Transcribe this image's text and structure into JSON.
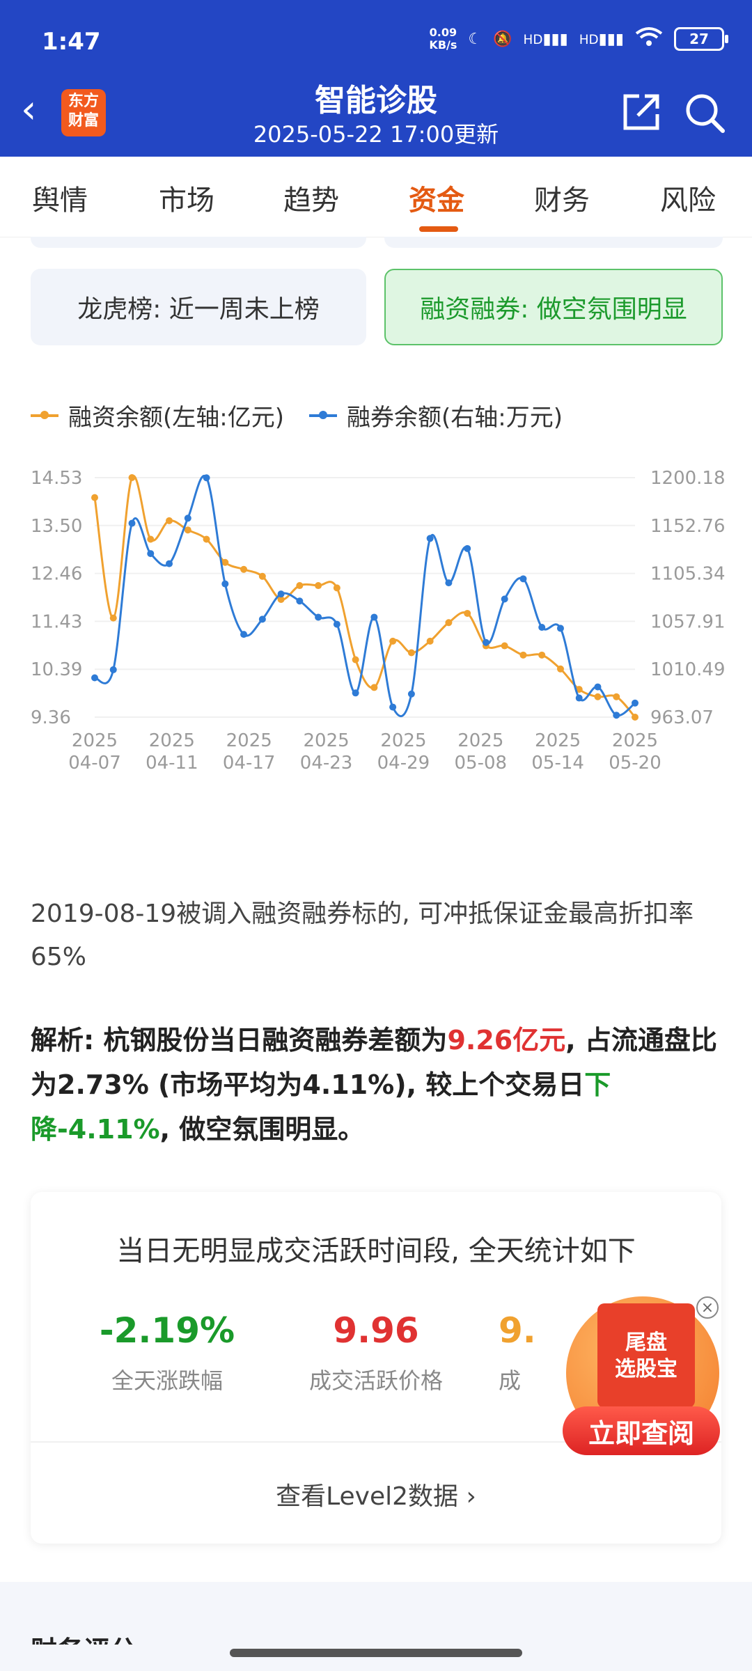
{
  "status_bar": {
    "time": "1:47",
    "net_speed_value": "0.09",
    "net_speed_unit": "KB/s",
    "signal1": "HD",
    "signal2": "HD",
    "battery": "27"
  },
  "header": {
    "title": "智能诊股",
    "subtitle": "2025-05-22 17:00更新",
    "logo_line1": "东方",
    "logo_line2": "财富"
  },
  "tabs": [
    {
      "label": "舆情"
    },
    {
      "label": "市场"
    },
    {
      "label": "趋势"
    },
    {
      "label": "资金",
      "active": true
    },
    {
      "label": "财务"
    },
    {
      "label": "风险"
    }
  ],
  "cards": {
    "lhb": "龙虎榜: 近一周未上榜",
    "rzrq": "融资融券: 做空氛围明显"
  },
  "legend": [
    {
      "label": "融资余额(左轴:亿元)",
      "color": "#f0a12f"
    },
    {
      "label": "融券余额(右轴:万元)",
      "color": "#2e7bd6"
    }
  ],
  "chart_data": {
    "type": "line",
    "x_ticks": [
      {
        "year": "2025",
        "date": "04-07"
      },
      {
        "year": "2025",
        "date": "04-11"
      },
      {
        "year": "2025",
        "date": "04-17"
      },
      {
        "year": "2025",
        "date": "04-23"
      },
      {
        "year": "2025",
        "date": "04-29"
      },
      {
        "year": "2025",
        "date": "05-08"
      },
      {
        "year": "2025",
        "date": "05-14"
      },
      {
        "year": "2025",
        "date": "05-20"
      }
    ],
    "left_axis": {
      "ticks": [
        "14.53",
        "13.50",
        "12.46",
        "11.43",
        "10.39",
        "9.36"
      ],
      "range": [
        9.36,
        14.53
      ]
    },
    "right_axis": {
      "ticks": [
        "1200.18",
        "1152.76",
        "1105.34",
        "1057.91",
        "1010.49",
        "963.07"
      ],
      "range": [
        963.07,
        1200.18
      ]
    },
    "series": [
      {
        "name": "融资余额(左轴:亿元)",
        "axis": "left",
        "color": "#f0a12f",
        "values": [
          14.1,
          11.5,
          14.53,
          13.2,
          13.6,
          13.4,
          13.2,
          12.7,
          12.55,
          12.4,
          11.9,
          12.2,
          12.2,
          12.15,
          10.6,
          10.0,
          11.0,
          10.75,
          11.0,
          11.4,
          11.6,
          10.9,
          10.9,
          10.7,
          10.7,
          10.4,
          9.96,
          9.8,
          9.8,
          9.36
        ]
      },
      {
        "name": "融券余额(右轴:万元)",
        "axis": "right",
        "color": "#2e7bd6",
        "values": [
          1002,
          1010,
          1155,
          1125,
          1115,
          1160,
          1200,
          1095,
          1045,
          1060,
          1085,
          1078,
          1062,
          1055,
          987,
          1062,
          973,
          986,
          1140,
          1096,
          1130,
          1037,
          1080,
          1100,
          1052,
          1051,
          982,
          993,
          965,
          977
        ]
      }
    ]
  },
  "note": "2019-08-19被调入融资融券标的, 可冲抵保证金最高折扣率65%",
  "analysis": {
    "prefix": "解析: 杭钢股份当日融资融券差额为",
    "amount": "9.26亿元",
    "middle": ", 占流通盘比为2.73% (市场平均为4.11%), 较上个交易日",
    "change": "下降-4.11%",
    "suffix": ", 做空氛围明显。"
  },
  "stats": {
    "title": "当日无明显成交活跃时间段, 全天统计如下",
    "items": [
      {
        "value": "-2.19%",
        "label": "全天涨跌幅",
        "color": "#1a9a2a"
      },
      {
        "value": "9.96",
        "label": "成交活跃价格",
        "color": "#e03232"
      },
      {
        "value": "9.",
        "label": "成",
        "color": "#f0a12f"
      }
    ],
    "level2_link": "查看Level2数据"
  },
  "ad": {
    "book_line1": "尾盘",
    "book_line2": "选股宝",
    "button": "立即查阅",
    "close": "×"
  },
  "footer_partial": "财务评分"
}
